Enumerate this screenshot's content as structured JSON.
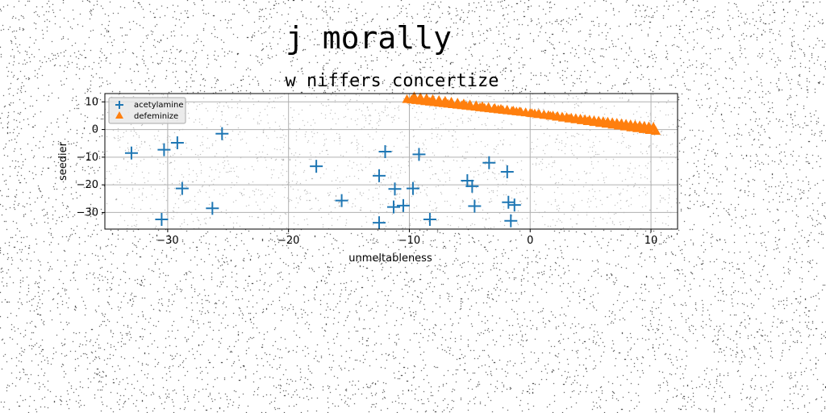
{
  "chart_data": {
    "type": "scatter",
    "suptitle": "j morally",
    "title": "w niffers concertize",
    "xlabel": "unmeltableness",
    "ylabel": "seedier",
    "xlim": [
      -35.2,
      12.2
    ],
    "ylim": [
      -36,
      13
    ],
    "xticks": [
      -30,
      -20,
      -10,
      0,
      10
    ],
    "yticks": [
      -30,
      -20,
      -10,
      0,
      10
    ],
    "grid": true,
    "legend_position": "top-left",
    "series": [
      {
        "name": "acetylamine",
        "marker": "plus",
        "color": "#1f77b4",
        "points": [
          [
            -33.0,
            -8.5
          ],
          [
            -30.3,
            -7.3
          ],
          [
            -30.5,
            -32.5
          ],
          [
            -29.2,
            -4.8
          ],
          [
            -28.8,
            -21.3
          ],
          [
            -26.3,
            -28.5
          ],
          [
            -25.5,
            -1.5
          ],
          [
            -17.7,
            -13.3
          ],
          [
            -15.6,
            -25.7
          ],
          [
            -12.5,
            -16.7
          ],
          [
            -12.5,
            -33.7
          ],
          [
            -12.0,
            -8.0
          ],
          [
            -11.3,
            -28.0
          ],
          [
            -11.2,
            -21.5
          ],
          [
            -10.5,
            -27.5
          ],
          [
            -9.7,
            -21.3
          ],
          [
            -9.2,
            -9.0
          ],
          [
            -8.3,
            -32.5
          ],
          [
            -5.2,
            -18.5
          ],
          [
            -4.8,
            -20.5
          ],
          [
            -4.6,
            -27.7
          ],
          [
            -3.4,
            -12.0
          ],
          [
            -1.9,
            -15.3
          ],
          [
            -1.8,
            -26.3
          ],
          [
            -1.6,
            -33.0
          ],
          [
            -1.3,
            -27.3
          ]
        ]
      },
      {
        "name": "defeminize",
        "marker": "triangle",
        "color": "#ff7f0e",
        "line_start": [
          -10.2,
          11.0
        ],
        "line_end": [
          10.2,
          1.0
        ],
        "line_count": 55,
        "line2_start": [
          -9.6,
          12.0
        ],
        "line2_end": [
          10.4,
          -0.5
        ],
        "line2_count": 40
      }
    ]
  }
}
